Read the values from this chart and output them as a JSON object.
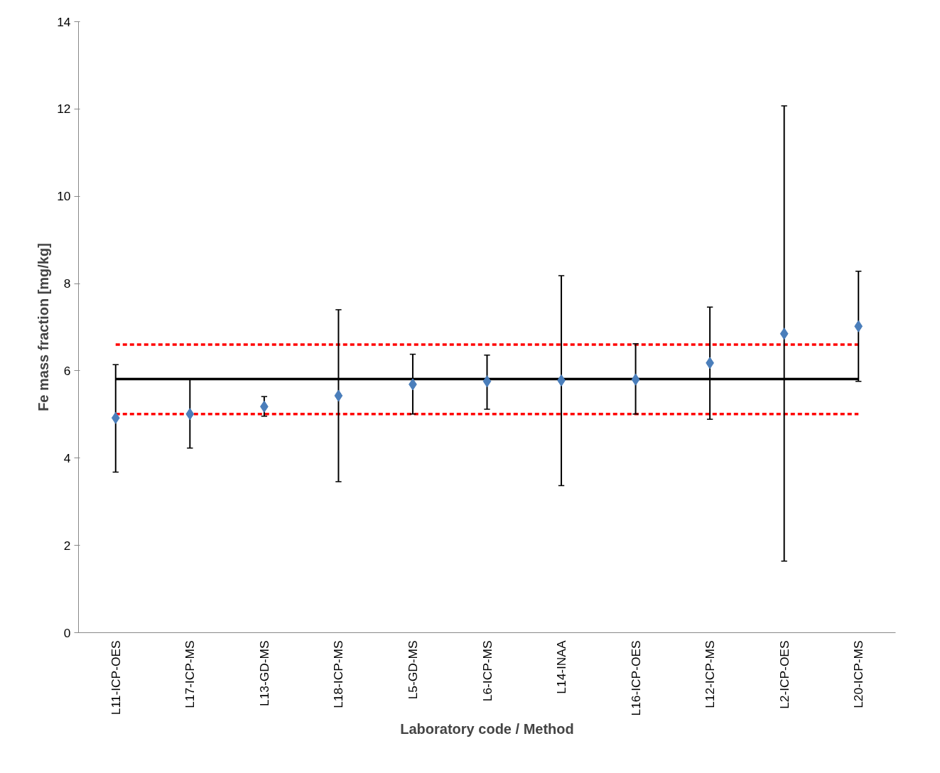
{
  "chart_data": {
    "type": "scatter",
    "xlabel": "Laboratory code / Method",
    "ylabel": "Fe mass fraction [mg/kg]",
    "categories": [
      "L11-ICP-OES",
      "L17-ICP-MS",
      "L13-GD-MS",
      "L18-ICP-MS",
      "L5-GD-MS",
      "L6-ICP-MS",
      "L14-INAA",
      "L16-ICP-OES",
      "L12-ICP-MS",
      "L2-ICP-OES",
      "L20-ICP-MS"
    ],
    "series": [
      {
        "color": "#4a7ebb",
        "values": [
          4.92,
          5.01,
          5.18,
          5.43,
          5.69,
          5.76,
          5.78,
          5.8,
          6.18,
          6.85,
          7.02
        ],
        "errors": [
          [
            3.68,
            6.14
          ],
          [
            4.23,
            5.81
          ],
          [
            4.96,
            5.41
          ],
          [
            3.46,
            7.4
          ],
          [
            5.01,
            6.38
          ],
          [
            5.12,
            6.36
          ],
          [
            3.37,
            8.18
          ],
          [
            5.01,
            6.62
          ],
          [
            4.89,
            7.46
          ],
          [
            1.64,
            12.07
          ],
          [
            5.76,
            8.28
          ]
        ]
      }
    ],
    "ylim": [
      0,
      14
    ],
    "yticks": [
      0,
      2,
      4,
      6,
      8,
      10,
      12,
      14
    ],
    "marker": "diamond",
    "grid": false,
    "ref_lines": [
      {
        "axis": "y",
        "value": 5.81,
        "color": "#000000",
        "line_style": "solid"
      },
      {
        "axis": "y",
        "value": 6.6,
        "color": "#ff0000",
        "line_style": "dashed"
      },
      {
        "axis": "y",
        "value": 5.01,
        "color": "#ff0000",
        "line_style": "dashed"
      }
    ]
  }
}
